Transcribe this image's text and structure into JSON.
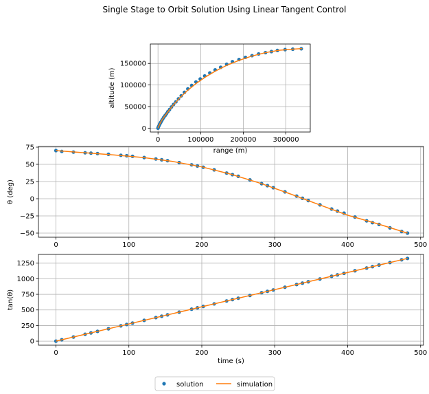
{
  "figure": {
    "title": "Single Stage to Orbit Solution Using Linear Tangent Control",
    "legend": {
      "placement": "bottom-center",
      "entries": [
        {
          "label": "solution",
          "marker": "circle",
          "color": "#1f77b4"
        },
        {
          "label": "simulation",
          "marker": "line",
          "color": "#ff7f0e"
        }
      ]
    }
  },
  "chart_data": [
    {
      "type": "scatter",
      "id": "range-altitude",
      "xlabel": "range (m)",
      "ylabel": "altitude (m)",
      "xlim": [
        -18000,
        357000
      ],
      "ylim": [
        -9000,
        195000
      ],
      "xticks": [
        0,
        100000,
        200000,
        300000
      ],
      "xticklabels": [
        "0",
        "100000",
        "200000",
        "300000"
      ],
      "yticks": [
        0,
        50000,
        100000,
        150000
      ],
      "yticklabels": [
        "0",
        "50000",
        "100000",
        "150000"
      ],
      "grid": true,
      "series": [
        {
          "name": "solution",
          "color": "#1f77b4",
          "x": [
            0,
            500,
            1500,
            3000,
            4500,
            6500,
            8500,
            11000,
            13500,
            16500,
            19500,
            23000,
            27000,
            31500,
            36500,
            42000,
            48000,
            54500,
            62000,
            70000,
            79000,
            89000,
            99000,
            109500,
            121500,
            134000,
            147000,
            161000,
            174500,
            190000,
            205000,
            220500,
            236000,
            252000,
            266000,
            280000,
            298000,
            316000,
            336000
          ],
          "y": [
            0,
            1500,
            4000,
            7000,
            10000,
            13500,
            17000,
            21000,
            25000,
            29000,
            33000,
            38000,
            43000,
            49000,
            55000,
            61000,
            68000,
            75000,
            83000,
            91000,
            99000,
            107000,
            114000,
            121000,
            128000,
            135000,
            141000,
            148000,
            154000,
            159000,
            164000,
            168000,
            172000,
            175000,
            177500,
            180000,
            182000,
            183000,
            184000
          ]
        },
        {
          "name": "simulation",
          "color": "#ff7f0e",
          "x": [
            0,
            3000,
            8000,
            15000,
            25000,
            37000,
            52000,
            70000,
            90000,
            112000,
            136000,
            162000,
            190000,
            220000,
            252000,
            284000,
            316000,
            338000
          ],
          "y": [
            0,
            7000,
            17000,
            27000,
            40000,
            55000,
            71000,
            88000,
            104000,
            119000,
            133000,
            146000,
            157000,
            167000,
            175000,
            180500,
            183000,
            184500
          ]
        }
      ]
    },
    {
      "type": "scatter",
      "id": "time-theta",
      "xlabel": "",
      "ylabel": "θ (deg)",
      "xlim": [
        -24,
        504
      ],
      "ylim": [
        -56,
        76
      ],
      "xticks": [
        0,
        100,
        200,
        300,
        400,
        500
      ],
      "xticklabels": [
        "0",
        "100",
        "200",
        "300",
        "400",
        "500"
      ],
      "yticks": [
        -50,
        -25,
        0,
        25,
        50,
        75
      ],
      "yticklabels": [
        "−50",
        "−25",
        "0",
        "25",
        "50",
        "75"
      ],
      "grid": true,
      "series": [
        {
          "name": "solution",
          "color": "#1f77b4",
          "x": [
            0,
            8,
            24,
            40,
            48,
            57,
            72,
            89,
            97,
            105,
            121,
            137,
            145,
            153,
            169,
            186,
            194,
            202,
            217,
            234,
            242,
            250,
            266,
            282,
            290,
            298,
            314,
            330,
            338,
            346,
            362,
            378,
            386,
            395,
            410,
            426,
            434,
            443,
            458,
            474,
            482
          ],
          "y": [
            70,
            68.8,
            67.8,
            66.8,
            66.3,
            65.7,
            64.6,
            63.2,
            62.5,
            61.7,
            59.9,
            57.8,
            56.6,
            55.3,
            52.5,
            49.3,
            47.6,
            45.8,
            42.0,
            37.3,
            35.0,
            32.6,
            27.4,
            21.9,
            19.0,
            16.0,
            10.0,
            3.8,
            0.6,
            -2.6,
            -8.9,
            -15.0,
            -18.0,
            -21.0,
            -26.6,
            -32.1,
            -34.8,
            -37.4,
            -42.4,
            -47.6,
            -50.0
          ]
        },
        {
          "name": "simulation",
          "color": "#ff7f0e",
          "x": [
            0,
            40,
            80,
            120,
            160,
            200,
            240,
            280,
            320,
            360,
            400,
            440,
            482
          ],
          "y": [
            70,
            66.8,
            63.6,
            59.9,
            54.2,
            46.3,
            35.6,
            22.6,
            7.5,
            -8.3,
            -24.0,
            -36.1,
            -50.0
          ]
        }
      ]
    },
    {
      "type": "scatter",
      "id": "time-tan-theta",
      "xlabel": "time (s)",
      "ylabel": "tan(θ)",
      "xlim": [
        -24,
        504
      ],
      "ylim": [
        -65,
        1390
      ],
      "xticks": [
        0,
        100,
        200,
        300,
        400,
        500
      ],
      "xticklabels": [
        "0",
        "100",
        "200",
        "300",
        "400",
        "500"
      ],
      "yticks": [
        0,
        250,
        500,
        750,
        1000,
        1250
      ],
      "yticklabels": [
        "0",
        "250",
        "500",
        "750",
        "1000",
        "1250"
      ],
      "grid": true,
      "series": [
        {
          "name": "solution",
          "color": "#1f77b4",
          "x": [
            0,
            8,
            24,
            40,
            48,
            57,
            72,
            89,
            97,
            105,
            121,
            137,
            145,
            153,
            169,
            186,
            194,
            202,
            217,
            234,
            242,
            250,
            266,
            282,
            290,
            298,
            314,
            330,
            338,
            346,
            362,
            378,
            386,
            395,
            410,
            426,
            434,
            443,
            458,
            474,
            482
          ],
          "y": [
            0,
            22,
            66,
            110,
            132,
            157,
            198,
            245,
            267,
            289,
            333,
            377,
            399,
            421,
            465,
            512,
            534,
            556,
            597,
            644,
            666,
            688,
            732,
            776,
            798,
            820,
            864,
            908,
            930,
            952,
            996,
            1040,
            1062,
            1087,
            1128,
            1172,
            1194,
            1219,
            1260,
            1304,
            1326
          ]
        },
        {
          "name": "simulation",
          "color": "#ff7f0e",
          "x": [
            0,
            482
          ],
          "y": [
            0,
            1326
          ]
        }
      ]
    }
  ]
}
